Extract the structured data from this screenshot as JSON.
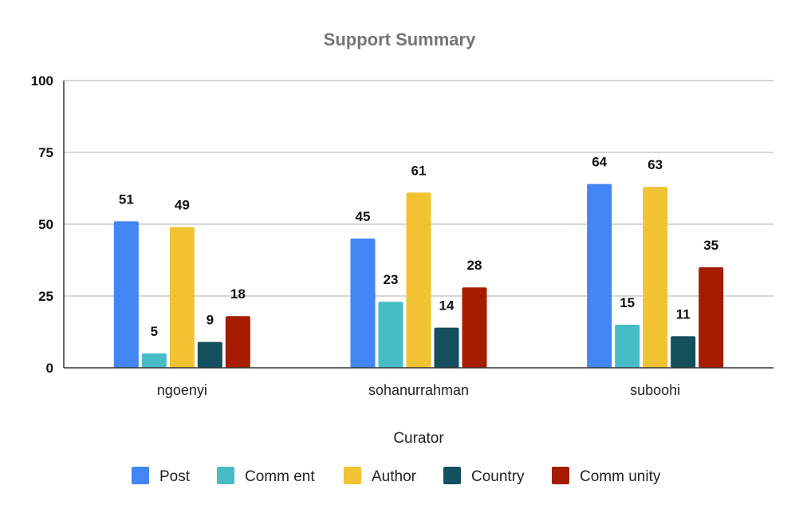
{
  "chart_data": {
    "type": "bar",
    "title": "Support Summary",
    "xlabel": "Curator",
    "ylabel": "",
    "ylim": [
      0,
      100
    ],
    "yticks": [
      0,
      25,
      50,
      75,
      100
    ],
    "grid": true,
    "legend_position": "bottom",
    "categories": [
      "ngoenyi",
      "sohanurrahman",
      "suboohi"
    ],
    "series": [
      {
        "name": "Post",
        "color": "#4285f4",
        "values": [
          51,
          45,
          64
        ]
      },
      {
        "name": "Comm ent",
        "color": "#46bdc6",
        "values": [
          5,
          23,
          15
        ]
      },
      {
        "name": "Author",
        "color": "#f1c232",
        "values": [
          49,
          61,
          63
        ]
      },
      {
        "name": "Country",
        "color": "#134f5c",
        "values": [
          9,
          14,
          11
        ]
      },
      {
        "name": "Comm unity",
        "color": "#a61c00",
        "values": [
          18,
          28,
          35
        ]
      }
    ]
  }
}
